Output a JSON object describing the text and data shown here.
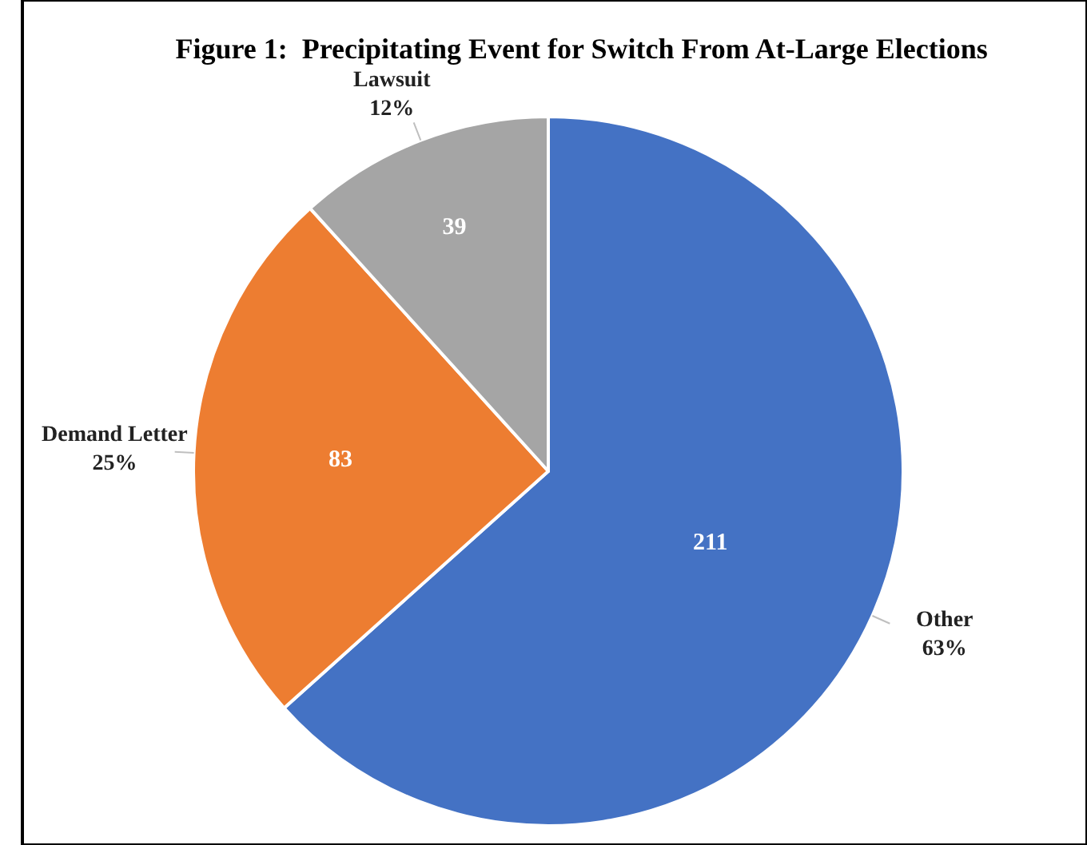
{
  "chart_data": {
    "type": "pie",
    "title": "Figure 1:  Precipitating Event for Switch From At-Large Elections",
    "categories": [
      "Other",
      "Demand Letter",
      "Lawsuit"
    ],
    "values": [
      211,
      83,
      39
    ],
    "colors": [
      "#4472c4",
      "#ed7d31",
      "#a5a5a5"
    ],
    "annotations": [
      "63%",
      "25%",
      "12%"
    ],
    "data_labels": true
  }
}
